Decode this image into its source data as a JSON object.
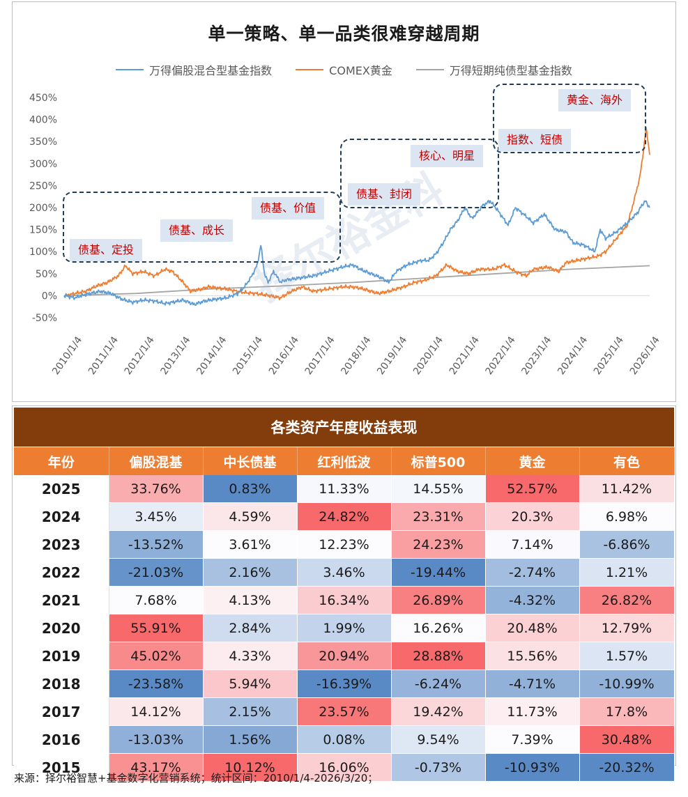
{
  "chart_data": {
    "type": "line",
    "title": "单一策略、单一品类很难穿越周期",
    "ylim": [
      -50,
      450
    ],
    "y_ticks": [
      "450%",
      "400%",
      "350%",
      "300%",
      "250%",
      "200%",
      "150%",
      "100%",
      "50%",
      "0%",
      "-50%"
    ],
    "y_tick_values": [
      450,
      400,
      350,
      300,
      250,
      200,
      150,
      100,
      50,
      0,
      -50
    ],
    "x_ticks": [
      "2010/1/4",
      "2011/1/4",
      "2012/1/4",
      "2013/1/4",
      "2014/1/4",
      "2015/1/4",
      "2016/1/4",
      "2017/1/4",
      "2018/1/4",
      "2019/1/4",
      "2020/1/4",
      "2021/1/4",
      "2022/1/4",
      "2023/1/4",
      "2024/1/4",
      "2025/1/4",
      "2026/1/4"
    ],
    "x_tick_years": [
      2010,
      2011,
      2012,
      2013,
      2014,
      2015,
      2016,
      2017,
      2018,
      2019,
      2020,
      2021,
      2022,
      2023,
      2024,
      2025,
      2026
    ],
    "x_range": [
      2010.0,
      2026.22
    ],
    "series": [
      {
        "name": "万得偏股混合型基金指数",
        "color": "#5b9bd5",
        "x": [
          2010.0,
          2010.3,
          2010.6,
          2010.9,
          2011.0,
          2011.3,
          2011.6,
          2011.9,
          2012.2,
          2012.5,
          2012.8,
          2013.0,
          2013.3,
          2013.6,
          2013.9,
          2014.2,
          2014.5,
          2014.8,
          2015.0,
          2015.2,
          2015.35,
          2015.45,
          2015.55,
          2015.65,
          2015.8,
          2016.0,
          2016.1,
          2016.5,
          2016.9,
          2017.3,
          2017.7,
          2018.0,
          2018.2,
          2018.5,
          2018.8,
          2018.99,
          2019.2,
          2019.5,
          2019.9,
          2020.1,
          2020.3,
          2020.5,
          2020.7,
          2020.9,
          2021.1,
          2021.3,
          2021.6,
          2021.8,
          2022.0,
          2022.3,
          2022.5,
          2022.8,
          2023.0,
          2023.3,
          2023.6,
          2023.9,
          2024.1,
          2024.4,
          2024.7,
          2024.85,
          2025.0,
          2025.3,
          2025.6,
          2025.9,
          2026.0,
          2026.1,
          2026.22
        ],
        "y": [
          0,
          -5,
          3,
          8,
          10,
          5,
          -8,
          -15,
          -10,
          -12,
          -18,
          -15,
          -10,
          -20,
          -12,
          -8,
          -5,
          5,
          20,
          45,
          70,
          115,
          50,
          30,
          55,
          30,
          35,
          40,
          45,
          55,
          65,
          70,
          60,
          50,
          40,
          30,
          55,
          70,
          80,
          80,
          95,
          120,
          150,
          170,
          200,
          175,
          205,
          215,
          195,
          160,
          200,
          180,
          165,
          185,
          150,
          145,
          120,
          115,
          100,
          150,
          130,
          145,
          165,
          190,
          205,
          215,
          200
        ]
      },
      {
        "name": "COMEX黄金",
        "color": "#ed7d31",
        "x": [
          2010.0,
          2010.3,
          2010.6,
          2010.9,
          2011.2,
          2011.5,
          2011.7,
          2011.9,
          2012.2,
          2012.5,
          2012.8,
          2013.0,
          2013.3,
          2013.5,
          2013.8,
          2014.0,
          2014.5,
          2014.9,
          2015.3,
          2015.7,
          2015.99,
          2016.3,
          2016.6,
          2016.9,
          2017.3,
          2017.7,
          2018.0,
          2018.3,
          2018.7,
          2019.0,
          2019.4,
          2019.7,
          2020.0,
          2020.3,
          2020.6,
          2020.9,
          2021.2,
          2021.5,
          2021.9,
          2022.2,
          2022.5,
          2022.8,
          2023.0,
          2023.4,
          2023.7,
          2023.9,
          2024.2,
          2024.5,
          2024.8,
          2025.0,
          2025.3,
          2025.6,
          2025.8,
          2025.95,
          2026.05,
          2026.12,
          2026.16,
          2026.22
        ],
        "y": [
          0,
          5,
          10,
          22,
          30,
          45,
          68,
          50,
          55,
          45,
          60,
          55,
          30,
          10,
          15,
          20,
          15,
          8,
          5,
          0,
          -5,
          10,
          20,
          10,
          15,
          20,
          20,
          15,
          5,
          10,
          20,
          30,
          35,
          45,
          70,
          55,
          50,
          60,
          60,
          70,
          55,
          45,
          60,
          65,
          55,
          75,
          80,
          85,
          90,
          100,
          130,
          160,
          220,
          270,
          330,
          380,
          360,
          320
        ]
      },
      {
        "name": "万得短期纯债型基金指数",
        "color": "#a5a5a5",
        "x": [
          2010.0,
          2012.0,
          2014.0,
          2016.0,
          2018.0,
          2020.0,
          2022.0,
          2024.0,
          2026.22
        ],
        "y": [
          0,
          5,
          15,
          22,
          30,
          40,
          50,
          60,
          68
        ]
      }
    ],
    "annotations": [
      "债基、定投",
      "债基、成长",
      "债基、价值",
      "债基、封闭",
      "核心、明星",
      "指数、短债",
      "黄金、海外"
    ]
  },
  "watermark": "择尔裕金科",
  "table": {
    "title": "各类资产年度收益表现",
    "headers": [
      "年份",
      "偏股混基",
      "中长债基",
      "红利低波",
      "标普500",
      "黄金",
      "有色"
    ],
    "rows": [
      {
        "year": "2025",
        "cells": [
          "33.76%",
          "0.83%",
          "11.33%",
          "14.55%",
          "52.57%",
          "11.42%"
        ]
      },
      {
        "year": "2024",
        "cells": [
          "3.45%",
          "4.59%",
          "24.82%",
          "23.31%",
          "20.3%",
          "6.98%"
        ]
      },
      {
        "year": "2023",
        "cells": [
          "-13.52%",
          "3.61%",
          "12.23%",
          "24.23%",
          "7.14%",
          "-6.86%"
        ]
      },
      {
        "year": "2022",
        "cells": [
          "-21.03%",
          "2.16%",
          "3.46%",
          "-19.44%",
          "-2.74%",
          "1.21%"
        ]
      },
      {
        "year": "2021",
        "cells": [
          "7.68%",
          "4.13%",
          "16.34%",
          "26.89%",
          "-4.32%",
          "26.82%"
        ]
      },
      {
        "year": "2020",
        "cells": [
          "55.91%",
          "2.84%",
          "1.99%",
          "16.26%",
          "20.48%",
          "12.79%"
        ]
      },
      {
        "year": "2019",
        "cells": [
          "45.02%",
          "4.33%",
          "20.94%",
          "28.88%",
          "15.56%",
          "1.57%"
        ]
      },
      {
        "year": "2018",
        "cells": [
          "-23.58%",
          "5.94%",
          "-16.39%",
          "-6.24%",
          "-4.71%",
          "-10.99%"
        ]
      },
      {
        "year": "2017",
        "cells": [
          "14.12%",
          "2.15%",
          "23.57%",
          "19.42%",
          "11.73%",
          "17.8%"
        ]
      },
      {
        "year": "2016",
        "cells": [
          "-13.03%",
          "1.56%",
          "0.08%",
          "9.54%",
          "7.39%",
          "30.48%"
        ]
      },
      {
        "year": "2015",
        "cells": [
          "43.17%",
          "10.12%",
          "16.06%",
          "-0.73%",
          "-10.93%",
          "-20.32%"
        ]
      }
    ]
  },
  "source": "来源：择尔裕智慧+基金数字化营销系统；统计区间：2010/1/4-2026/3/20；"
}
